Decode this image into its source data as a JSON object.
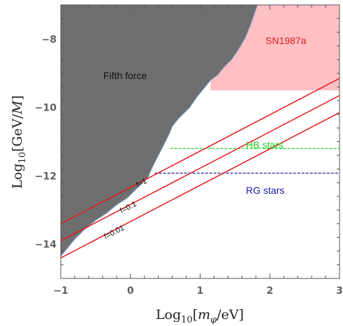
{
  "chart_data": {
    "type": "area",
    "xlabel": "Log10[mφ/eV]",
    "ylabel": "Log10[GeV/M]",
    "xlim": [
      -1,
      3
    ],
    "ylim": [
      -15,
      -7
    ],
    "xticks": [
      -1,
      0,
      1,
      2,
      3
    ],
    "yticks": [
      -14,
      -12,
      -10,
      -8
    ],
    "grid": false,
    "colors": {
      "fifth_force": "#6e6e6e",
      "fifth_force_edge": "#7a9cc4",
      "sn1987a": "#ffc0c4",
      "red_line": "#e41a1c",
      "hb": "#22dd22",
      "rg": "#1a1aaa"
    },
    "regions": [
      {
        "name": "Fifth force",
        "boundary_x": [
          -1,
          -0.9,
          -0.8,
          -0.65,
          -0.5,
          -0.35,
          -0.2,
          -0.05,
          0.1,
          0.2,
          0.25,
          0.3,
          0.4,
          0.5,
          0.55,
          0.6,
          0.7,
          0.85,
          0.95,
          1.05,
          1.15,
          1.25,
          1.35,
          1.45,
          1.55,
          1.65,
          1.72,
          1.78,
          1.82
        ],
        "boundary_y": [
          -14.35,
          -14.1,
          -13.85,
          -13.55,
          -13.3,
          -13.1,
          -12.85,
          -12.65,
          -12.35,
          -12.15,
          -12.05,
          -11.8,
          -11.4,
          -11.0,
          -10.8,
          -10.55,
          -10.3,
          -10.0,
          -9.7,
          -9.45,
          -9.2,
          -9.05,
          -8.8,
          -8.6,
          -8.3,
          -7.95,
          -7.6,
          -7.25,
          -7.0
        ]
      },
      {
        "name": "SN1987a",
        "x_range": [
          1.15,
          3
        ],
        "y_range": [
          -9.5,
          -7
        ]
      }
    ],
    "series": [
      {
        "name": "f=1",
        "x": [
          -1,
          3
        ],
        "y": [
          -13.4,
          -9.15
        ]
      },
      {
        "name": "f=0.1",
        "x": [
          -1,
          3
        ],
        "y": [
          -13.9,
          -9.65
        ]
      },
      {
        "name": "f=0.01",
        "x": [
          -1,
          3
        ],
        "y": [
          -14.4,
          -10.15
        ]
      }
    ],
    "hlines": [
      {
        "name": "HB stars",
        "y": -11.2,
        "x_start": 0.57,
        "x_end": 3
      },
      {
        "name": "RG stars",
        "y": -11.92,
        "x_start": 0.35,
        "x_end": 3
      }
    ],
    "annotations": {
      "fifth_force": "Fifth force",
      "sn1987a": "SN1987a",
      "hb_stars": "HB stars",
      "rg_stars": "RG stars",
      "f1": "f=1",
      "f01": "f=0.1",
      "f001": "f=0.01"
    },
    "title": ""
  }
}
